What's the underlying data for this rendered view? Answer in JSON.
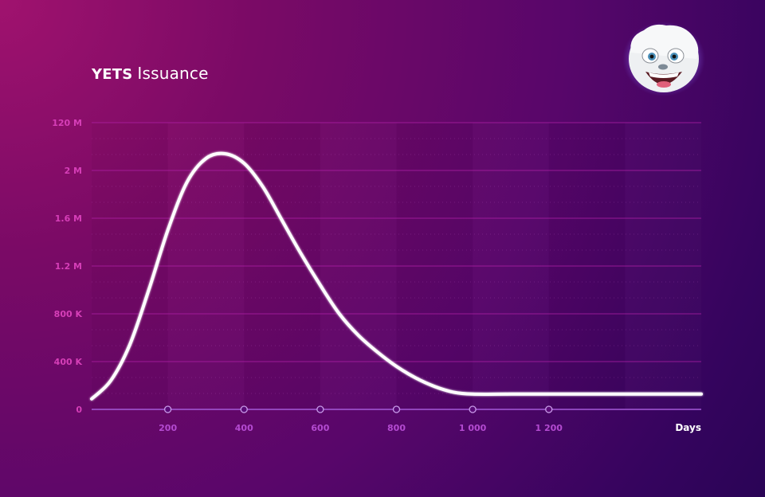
{
  "header": {
    "brand": "YETS",
    "title": "Issuance"
  },
  "mascot": {
    "icon": "yeti-avatar-icon"
  },
  "chart_data": {
    "type": "line",
    "xlabel": "Days",
    "ylabel": "",
    "xlim": [
      0,
      1600
    ],
    "ytick_labels": [
      "0",
      "400 K",
      "800 K",
      "1.2 M",
      "1.6 M",
      "2 M",
      "120 M"
    ],
    "xtick_values": [
      200,
      400,
      600,
      800,
      1000,
      1200
    ],
    "xtick_labels": [
      "200",
      "400",
      "600",
      "800",
      "1 000",
      "1 200"
    ],
    "grid": true,
    "line_color": "#ffffff",
    "grid_color": "#b020a8",
    "series": [
      {
        "x": [
          0,
          50,
          100,
          150,
          200,
          250,
          300,
          350,
          400,
          450,
          500,
          550,
          600,
          650,
          700,
          750,
          800,
          850,
          900,
          950,
          1000,
          1100,
          1200,
          1300,
          1400,
          1500,
          1600
        ],
        "y_level": [
          0.22,
          0.6,
          1.35,
          2.5,
          3.75,
          4.75,
          5.25,
          5.35,
          5.15,
          4.65,
          3.95,
          3.25,
          2.6,
          2.0,
          1.55,
          1.2,
          0.9,
          0.66,
          0.48,
          0.36,
          0.32,
          0.32,
          0.32,
          0.32,
          0.32,
          0.32,
          0.32
        ]
      }
    ]
  }
}
